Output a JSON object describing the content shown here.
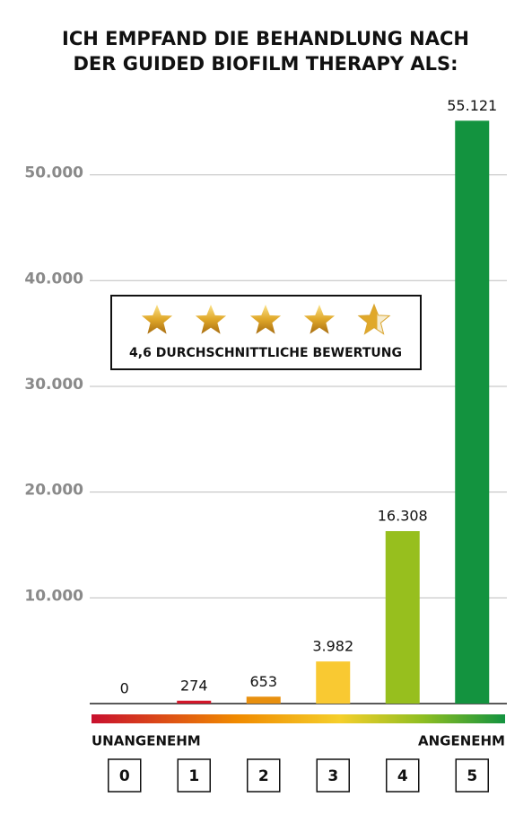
{
  "chart_data": {
    "type": "bar",
    "title": [
      "ICH EMPFAND DIE BEHANDLUNG NACH",
      "DER GUIDED BIOFILM THERAPY ALS:"
    ],
    "categories": [
      "0",
      "1",
      "2",
      "3",
      "4",
      "5"
    ],
    "values": [
      0,
      274,
      653,
      3982,
      16308,
      55121
    ],
    "value_labels": [
      "0",
      "274",
      "653",
      "3.982",
      "16.308",
      "55.121"
    ],
    "colors": [
      "#d2172a",
      "#d2172a",
      "#e8900f",
      "#f9c932",
      "#97bf1e",
      "#13933f"
    ],
    "ylim": [
      0,
      56000
    ],
    "yticks": [
      {
        "value": 10000,
        "label": "10.000"
      },
      {
        "value": 20000,
        "label": "20.000"
      },
      {
        "value": 30000,
        "label": "30.000"
      },
      {
        "value": 40000,
        "label": "40.000"
      },
      {
        "value": 50000,
        "label": "50.000"
      }
    ],
    "grid": true,
    "scale_labels": [
      "UNANGENEHM",
      "ANGENEHM"
    ],
    "rating_label": "4,6 DURCHSCHNITTLICHE BEWERTUNG"
  }
}
